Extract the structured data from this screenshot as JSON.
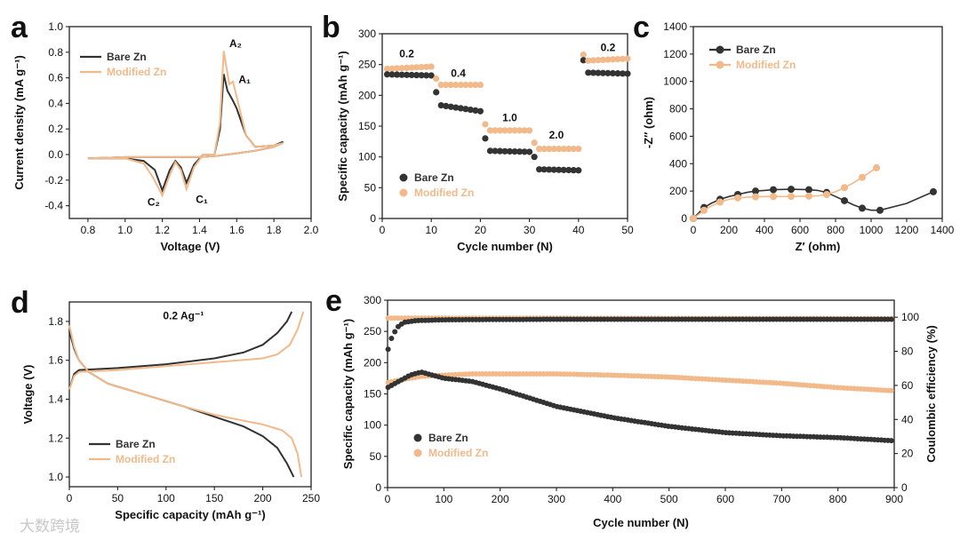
{
  "colors": {
    "bare": "#333333",
    "modified": "#f2b98a"
  },
  "watermark": "大数跨境",
  "chart_data": [
    {
      "panel": "a",
      "type": "line",
      "xlabel": "Voltage (V)",
      "ylabel": "Current density (mA g⁻¹)",
      "xlim": [
        0.7,
        2.0
      ],
      "ylim": [
        -0.5,
        1.0
      ],
      "xticks": [
        "0.8",
        "1.0",
        "1.2",
        "1.4",
        "1.6",
        "1.8",
        "2.0"
      ],
      "yticks": [
        "-0.4",
        "-0.2",
        "0.0",
        "0.2",
        "0.4",
        "0.6",
        "0.8",
        "1.0"
      ],
      "legend": [
        "Bare Zn",
        "Modified Zn"
      ],
      "annotations": [
        {
          "label": "A₂",
          "x": 1.56,
          "y": 0.84
        },
        {
          "label": "A₁",
          "x": 1.61,
          "y": 0.56
        },
        {
          "label": "C₂",
          "x": 1.12,
          "y": -0.4
        },
        {
          "label": "C₁",
          "x": 1.38,
          "y": -0.38
        }
      ],
      "series": [
        {
          "name": "Bare Zn",
          "x": [
            0.8,
            1.0,
            1.1,
            1.16,
            1.2,
            1.24,
            1.27,
            1.3,
            1.33,
            1.37,
            1.42,
            1.48,
            1.51,
            1.53,
            1.55,
            1.58,
            1.6,
            1.65,
            1.7,
            1.8,
            1.85,
            1.8,
            1.7,
            1.6,
            1.5,
            1.4,
            1.3,
            1.2,
            1.0,
            0.8
          ],
          "y": [
            -0.03,
            -0.03,
            -0.05,
            -0.12,
            -0.28,
            -0.12,
            -0.05,
            -0.1,
            -0.22,
            -0.08,
            0.0,
            0.0,
            0.2,
            0.63,
            0.5,
            0.42,
            0.36,
            0.15,
            0.06,
            0.07,
            0.1,
            0.06,
            0.03,
            0.01,
            -0.01,
            -0.02,
            -0.02,
            -0.02,
            -0.02,
            -0.03
          ]
        },
        {
          "name": "Modified Zn",
          "x": [
            0.8,
            1.0,
            1.1,
            1.15,
            1.2,
            1.24,
            1.27,
            1.3,
            1.33,
            1.37,
            1.42,
            1.48,
            1.51,
            1.53,
            1.56,
            1.58,
            1.6,
            1.65,
            1.7,
            1.8,
            1.85,
            1.8,
            1.7,
            1.6,
            1.5,
            1.4,
            1.3,
            1.2,
            1.0,
            0.8
          ],
          "y": [
            -0.03,
            -0.03,
            -0.07,
            -0.18,
            -0.32,
            -0.16,
            -0.06,
            -0.12,
            -0.27,
            -0.1,
            0.0,
            0.0,
            0.25,
            0.81,
            0.55,
            0.57,
            0.45,
            0.15,
            0.06,
            0.07,
            0.09,
            0.06,
            0.03,
            0.01,
            -0.01,
            -0.02,
            -0.02,
            -0.02,
            -0.02,
            -0.03
          ]
        }
      ]
    },
    {
      "panel": "b",
      "type": "scatter",
      "xlabel": "Cycle number (N)",
      "ylabel": "Specific capacity (mAh g⁻¹)",
      "xlim": [
        0,
        50
      ],
      "ylim": [
        0,
        300
      ],
      "xticks": [
        "0",
        "10",
        "20",
        "30",
        "40",
        "50"
      ],
      "yticks": [
        "0",
        "50",
        "100",
        "150",
        "200",
        "250",
        "300"
      ],
      "legend": [
        "Bare Zn",
        "Modified Zn"
      ],
      "rate_labels": [
        {
          "label": "0.2",
          "x": 5,
          "y": 262
        },
        {
          "label": "0.4",
          "x": 15.5,
          "y": 230
        },
        {
          "label": "1.0",
          "x": 26,
          "y": 158
        },
        {
          "label": "2.0",
          "x": 35.5,
          "y": 130
        },
        {
          "label": "0.2",
          "x": 46,
          "y": 272
        }
      ],
      "segments": [
        {
          "from": 1,
          "to": 10,
          "bare": 234,
          "modified": 243
        },
        {
          "from": 11,
          "to": 20,
          "bare": 185,
          "modified": 217
        },
        {
          "from": 21,
          "to": 30,
          "bare": 110,
          "modified": 143
        },
        {
          "from": 31,
          "to": 40,
          "bare": 80,
          "modified": 113
        },
        {
          "from": 41,
          "to": 50,
          "bare": 237,
          "modified": 256
        }
      ]
    },
    {
      "panel": "c",
      "type": "line",
      "xlabel": "Z′ (ohm)",
      "ylabel": "-Z′′ (ohm)",
      "xlim": [
        0,
        1400
      ],
      "ylim": [
        0,
        1400
      ],
      "xticks": [
        "0",
        "200",
        "400",
        "600",
        "800",
        "1000",
        "1200",
        "1400"
      ],
      "yticks": [
        "0",
        "200",
        "400",
        "600",
        "800",
        "1000",
        "1200",
        "1400"
      ],
      "legend": [
        "Bare Zn",
        "Modified Zn"
      ],
      "series": [
        {
          "name": "Bare Zn",
          "x": [
            0,
            30,
            60,
            100,
            150,
            200,
            250,
            300,
            350,
            400,
            450,
            500,
            550,
            600,
            650,
            700,
            750,
            800,
            850,
            900,
            950,
            1000,
            1050,
            1200,
            1350
          ],
          "y": [
            0,
            40,
            80,
            110,
            140,
            160,
            175,
            190,
            200,
            205,
            210,
            212,
            213,
            212,
            210,
            205,
            190,
            160,
            130,
            100,
            75,
            60,
            60,
            110,
            195
          ]
        },
        {
          "name": "Modified Zn",
          "x": [
            0,
            30,
            60,
            100,
            150,
            200,
            250,
            300,
            350,
            400,
            450,
            500,
            550,
            600,
            650,
            700,
            750,
            800,
            850,
            900,
            950,
            1030
          ],
          "y": [
            0,
            30,
            60,
            90,
            120,
            140,
            150,
            155,
            158,
            160,
            160,
            160,
            161,
            162,
            163,
            165,
            175,
            195,
            225,
            260,
            300,
            370
          ]
        }
      ]
    },
    {
      "panel": "d",
      "type": "line",
      "xlabel": "Specific capacity (mAh g⁻¹)",
      "ylabel": "Voltage (V)",
      "title": "0.2 Ag⁻¹",
      "xlim": [
        0,
        250
      ],
      "ylim": [
        0.95,
        1.9
      ],
      "xticks": [
        "0",
        "50",
        "100",
        "150",
        "200",
        "250"
      ],
      "yticks": [
        "1.0",
        "1.2",
        "1.4",
        "1.6",
        "1.8"
      ],
      "legend": [
        "Bare Zn",
        "Modified Zn"
      ],
      "series": [
        {
          "name": "Bare Zn charge",
          "x": [
            0,
            5,
            10,
            50,
            100,
            150,
            180,
            200,
            215,
            225,
            230
          ],
          "y": [
            1.45,
            1.53,
            1.55,
            1.56,
            1.58,
            1.61,
            1.64,
            1.68,
            1.74,
            1.8,
            1.85
          ]
        },
        {
          "name": "Bare Zn discharge",
          "x": [
            0,
            5,
            10,
            20,
            40,
            80,
            120,
            150,
            180,
            200,
            215,
            225,
            232
          ],
          "y": [
            1.75,
            1.66,
            1.6,
            1.54,
            1.48,
            1.42,
            1.36,
            1.31,
            1.26,
            1.21,
            1.15,
            1.07,
            1.0
          ]
        },
        {
          "name": "Modified Zn charge",
          "x": [
            0,
            5,
            10,
            50,
            100,
            150,
            200,
            215,
            228,
            236,
            242
          ],
          "y": [
            1.45,
            1.52,
            1.54,
            1.55,
            1.57,
            1.59,
            1.61,
            1.63,
            1.68,
            1.76,
            1.85
          ]
        },
        {
          "name": "Modified Zn discharge",
          "x": [
            0,
            5,
            10,
            20,
            40,
            80,
            120,
            150,
            180,
            200,
            220,
            230,
            236,
            240
          ],
          "y": [
            1.78,
            1.67,
            1.6,
            1.54,
            1.48,
            1.42,
            1.36,
            1.32,
            1.29,
            1.27,
            1.24,
            1.2,
            1.12,
            1.0
          ]
        }
      ]
    },
    {
      "panel": "e",
      "type": "scatter",
      "xlabel": "Cycle number (N)",
      "ylabel": "Specific capacity (mAh g⁻¹)",
      "y2label": "Coulombic efficiency (%)",
      "xlim": [
        0,
        900
      ],
      "ylim": [
        0,
        300
      ],
      "y2lim": [
        0,
        110
      ],
      "xticks": [
        "0",
        "100",
        "200",
        "300",
        "400",
        "500",
        "600",
        "700",
        "800",
        "900"
      ],
      "yticks": [
        "0",
        "50",
        "100",
        "150",
        "200",
        "250",
        "300"
      ],
      "y2ticks": [
        "0",
        "20",
        "40",
        "60",
        "80",
        "100"
      ],
      "legend": [
        "Bare Zn",
        "Modified Zn"
      ],
      "capacity": [
        {
          "name": "Bare Zn",
          "x": [
            0,
            20,
            40,
            60,
            80,
            100,
            150,
            200,
            300,
            400,
            500,
            600,
            700,
            800,
            900
          ],
          "y": [
            160,
            170,
            180,
            185,
            180,
            175,
            170,
            158,
            130,
            112,
            98,
            88,
            83,
            80,
            75
          ]
        },
        {
          "name": "Modified Zn",
          "x": [
            0,
            20,
            40,
            60,
            100,
            150,
            200,
            300,
            400,
            500,
            600,
            700,
            800,
            900
          ],
          "y": [
            168,
            172,
            175,
            178,
            180,
            182,
            182,
            182,
            180,
            177,
            172,
            167,
            160,
            155
          ]
        }
      ],
      "efficiency": [
        {
          "name": "Bare Zn",
          "x": [
            0,
            5,
            10,
            20,
            30,
            50,
            100,
            300,
            600,
            900
          ],
          "y": [
            80,
            86,
            90,
            95,
            97,
            98,
            98.5,
            98.8,
            98.8,
            98.8
          ]
        },
        {
          "name": "Modified Zn",
          "x": [
            0,
            100,
            300,
            600,
            900
          ],
          "y": [
            99.5,
            99.5,
            99.4,
            99.3,
            99.2
          ]
        }
      ]
    }
  ]
}
